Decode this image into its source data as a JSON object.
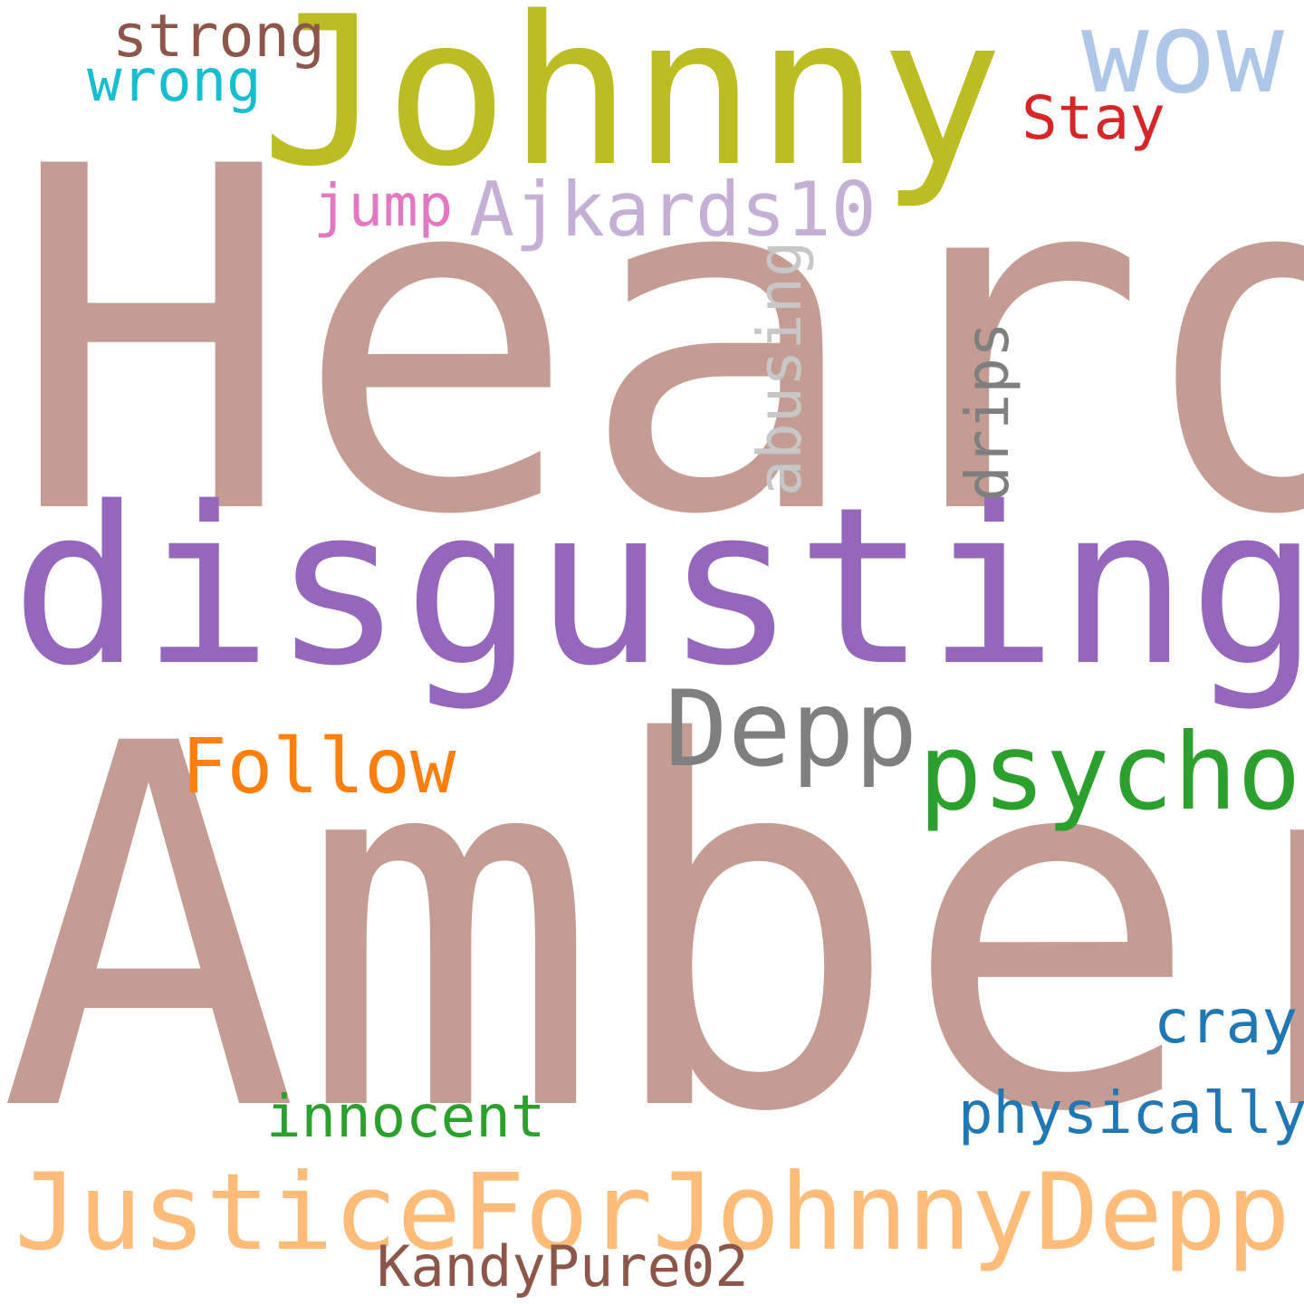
{
  "word_cloud": {
    "words": [
      {
        "text": "Heard",
        "color": "#c49c94"
      },
      {
        "text": "Amber",
        "color": "#c49c94"
      },
      {
        "text": "disgusting",
        "color": "#9467bd"
      },
      {
        "text": "Johnny",
        "color": "#bcbd22"
      },
      {
        "text": "JusticeForJohnnyDepp",
        "color": "#ffbb78"
      },
      {
        "text": "psycho",
        "color": "#2ca02c"
      },
      {
        "text": "Depp",
        "color": "#7f7f7f"
      },
      {
        "text": "Follow",
        "color": "#ff7f0e"
      },
      {
        "text": "wow",
        "color": "#aec7e8"
      },
      {
        "text": "Ajkards10",
        "color": "#c5b0d5"
      },
      {
        "text": "abusing",
        "color": "#c7c7c7"
      },
      {
        "text": "drips",
        "color": "#7f7f7f"
      },
      {
        "text": "strong",
        "color": "#8c564b"
      },
      {
        "text": "wrong",
        "color": "#17becf"
      },
      {
        "text": "Stay",
        "color": "#d62728"
      },
      {
        "text": "jump",
        "color": "#e377c2"
      },
      {
        "text": "cray",
        "color": "#1f77b4"
      },
      {
        "text": "physically",
        "color": "#1f77b4"
      },
      {
        "text": "innocent",
        "color": "#2ca02c"
      },
      {
        "text": "KandyPure02",
        "color": "#8c564b"
      }
    ]
  }
}
